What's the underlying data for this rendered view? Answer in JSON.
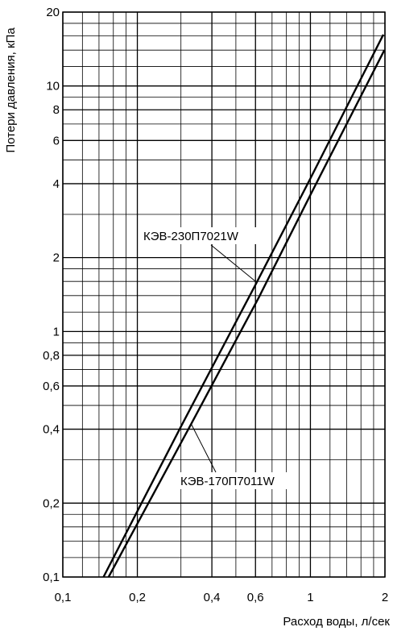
{
  "chart_data": {
    "type": "line",
    "x_scale": "log",
    "y_scale": "log",
    "xlim": [
      0.1,
      2
    ],
    "ylim": [
      0.1,
      20
    ],
    "xlabel": "Расход воды, л/сек",
    "ylabel": "Потери давления, кПа",
    "grid": true,
    "x_ticks": [
      {
        "value": 0.1,
        "label": "0,1"
      },
      {
        "value": 0.2,
        "label": "0,2"
      },
      {
        "value": 0.4,
        "label": "0,4"
      },
      {
        "value": 0.6,
        "label": "0,6"
      },
      {
        "value": 1,
        "label": "1"
      },
      {
        "value": 2,
        "label": "2"
      }
    ],
    "y_ticks": [
      {
        "value": 0.1,
        "label": "0,1"
      },
      {
        "value": 0.2,
        "label": "0,2"
      },
      {
        "value": 0.4,
        "label": "0,4"
      },
      {
        "value": 0.6,
        "label": "0,6"
      },
      {
        "value": 0.8,
        "label": "0,8"
      },
      {
        "value": 1,
        "label": "1"
      },
      {
        "value": 2,
        "label": "2"
      },
      {
        "value": 4,
        "label": "4"
      },
      {
        "value": 6,
        "label": "6"
      },
      {
        "value": 8,
        "label": "8"
      },
      {
        "value": 10,
        "label": "10"
      },
      {
        "value": 20,
        "label": "20"
      }
    ],
    "x_grid": [
      0.1,
      0.12,
      0.14,
      0.16,
      0.18,
      0.2,
      0.3,
      0.4,
      0.5,
      0.6,
      0.7,
      0.8,
      0.9,
      1,
      1.2,
      1.4,
      1.6,
      1.8,
      2
    ],
    "y_grid": [
      0.1,
      0.12,
      0.14,
      0.16,
      0.18,
      0.2,
      0.3,
      0.4,
      0.5,
      0.6,
      0.7,
      0.8,
      0.9,
      1,
      1.2,
      1.4,
      1.6,
      1.8,
      2,
      3,
      4,
      5,
      6,
      7,
      8,
      9,
      10,
      12,
      14,
      16,
      18,
      20
    ],
    "series": [
      {
        "name": "КЭВ-230П7021W",
        "x": [
          0.146,
          0.3,
          0.6,
          1.0,
          1.97
        ],
        "y": [
          0.1,
          0.41,
          1.55,
          4.2,
          16.2
        ],
        "leader_point": {
          "x": 0.6,
          "y": 1.6
        }
      },
      {
        "name": "КЭВ-170П7011W",
        "x": [
          0.153,
          0.33,
          0.62,
          1.0,
          1.99
        ],
        "y": [
          0.1,
          0.42,
          1.38,
          3.6,
          14.0
        ],
        "leader_point": {
          "x": 0.33,
          "y": 0.42
        }
      }
    ]
  }
}
